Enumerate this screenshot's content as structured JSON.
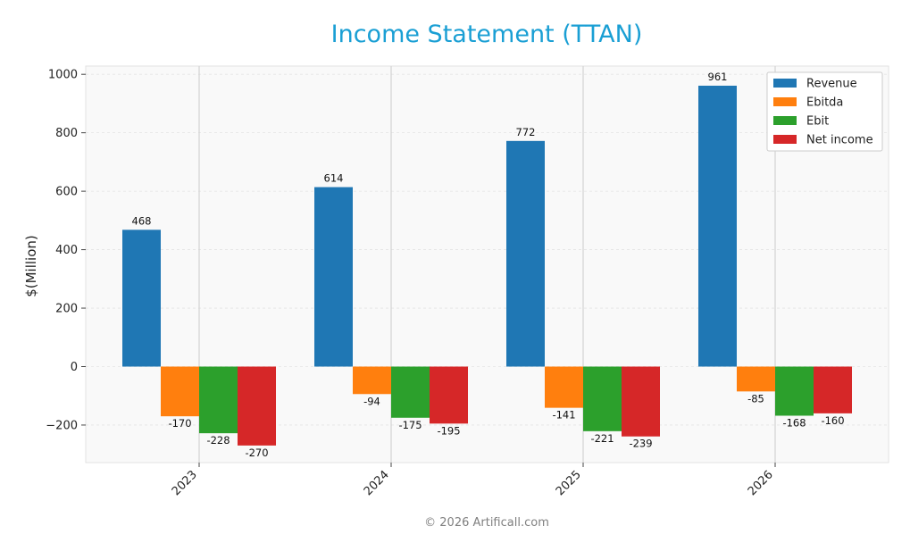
{
  "chart_data": {
    "type": "bar",
    "title": "Income Statement (TTAN)",
    "ylabel": "$(Million)",
    "xlabel": "",
    "categories": [
      "2023",
      "2024",
      "2025",
      "2026"
    ],
    "series": [
      {
        "name": "Revenue",
        "color": "#1f77b4",
        "values": [
          468,
          614,
          772,
          961
        ],
        "labels": [
          "468",
          "614",
          "772",
          "961"
        ]
      },
      {
        "name": "Ebitda",
        "color": "#ff7f0e",
        "values": [
          -170,
          -94,
          -141,
          -85
        ],
        "labels": [
          "-170",
          "-94",
          "-141",
          "-85"
        ]
      },
      {
        "name": "Ebit",
        "color": "#2ca02c",
        "values": [
          -228,
          -175,
          -221,
          -168
        ],
        "labels": [
          "-228",
          "-175",
          "-221",
          "-168"
        ]
      },
      {
        "name": "Net income",
        "color": "#d62728",
        "values": [
          -270,
          -195,
          -239,
          -160
        ],
        "labels": [
          "-270",
          "-195",
          "-239",
          "-160"
        ]
      }
    ],
    "ylim": [
      -330,
      1020
    ],
    "yticks": [
      -200,
      0,
      200,
      400,
      600,
      800,
      1000
    ],
    "ytick_labels": [
      "−200",
      "0",
      "200",
      "400",
      "600",
      "800",
      "1000"
    ],
    "grid": true,
    "legend_position": "top-right",
    "title_color": "#1a9fd4"
  },
  "footer": "© 2026 Artificall.com"
}
